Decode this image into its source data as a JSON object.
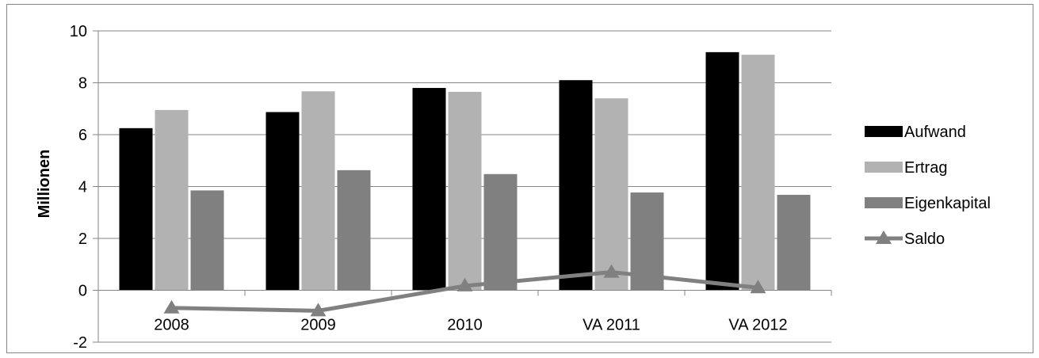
{
  "chart_data": {
    "type": "bar",
    "title": "",
    "xlabel": "",
    "ylabel": "Millionen",
    "ylim": [
      -2,
      10
    ],
    "yticks": [
      -2,
      0,
      2,
      4,
      6,
      8,
      10
    ],
    "ytick_labels": [
      "-2",
      "0",
      "2",
      "4",
      "6",
      "8",
      "10"
    ],
    "grid": true,
    "legend_position": "right",
    "categories": [
      "2008",
      "2009",
      "2010",
      "VA 2011",
      "VA 2012"
    ],
    "series": [
      {
        "name": "Aufwand",
        "type": "bar",
        "color": "#000000",
        "values": [
          6.25,
          6.87,
          7.8,
          8.1,
          9.18
        ]
      },
      {
        "name": "Ertrag",
        "type": "bar",
        "color": "#b2b2b2",
        "values": [
          6.95,
          7.67,
          7.65,
          7.4,
          9.08
        ]
      },
      {
        "name": "Eigenkapital",
        "type": "bar",
        "color": "#808080",
        "values": [
          3.85,
          4.63,
          4.48,
          3.77,
          3.68
        ]
      },
      {
        "name": "Saldo",
        "type": "line",
        "color": "#808080",
        "marker": "triangle",
        "values": [
          -0.68,
          -0.79,
          0.17,
          0.7,
          0.1
        ]
      }
    ]
  }
}
